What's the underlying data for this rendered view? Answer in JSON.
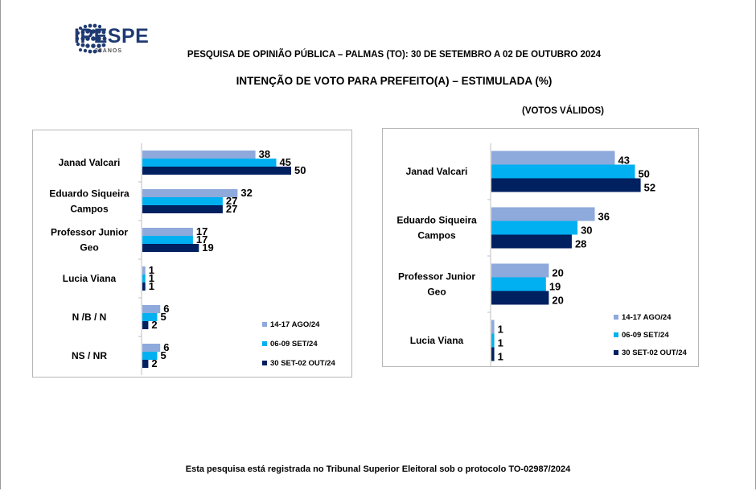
{
  "brand": {
    "name": "IPESPE",
    "tagline": "38ANOS"
  },
  "header": {
    "survey": "PESQUISA DE OPINIÃO PÚBLICA – PALMAS (TO): 30 DE SETEMBRO A 02 DE OUTUBRO 2024"
  },
  "title": "INTENÇÃO DE VOTO PARA PREFEITO(A) – ESTIMULADA (%)",
  "footer": "Esta pesquisa está registrada no Tribunal Superior Eleitoral sob o protocolo TO-02987/2024",
  "colors": {
    "s1": "#8ea9db",
    "s2": "#00b0f0",
    "s3": "#002060"
  },
  "chart_data": [
    {
      "type": "bar",
      "orientation": "horizontal",
      "subtitle": "",
      "categories": [
        [
          "Janad Valcari"
        ],
        [
          "Eduardo Siqueira",
          "Campos"
        ],
        [
          "Professor Junior",
          "Geo"
        ],
        [
          "Lucia Viana"
        ],
        [
          "N /B / N"
        ],
        [
          "NS / NR"
        ]
      ],
      "series": [
        {
          "name": "14-17 AGO/24",
          "color": "#8ea9db",
          "values": [
            38,
            32,
            17,
            1,
            6,
            6
          ]
        },
        {
          "name": "06-09 SET/24",
          "color": "#00b0f0",
          "values": [
            45,
            27,
            17,
            1,
            5,
            5
          ]
        },
        {
          "name": "30 SET-02 OUT/24",
          "color": "#002060",
          "values": [
            50,
            27,
            19,
            1,
            2,
            2
          ]
        }
      ],
      "xlim": [
        0,
        60
      ],
      "legend": "bottom-right",
      "grid": false
    },
    {
      "type": "bar",
      "orientation": "horizontal",
      "subtitle": "(VOTOS VÁLIDOS)",
      "categories": [
        [
          "Janad Valcari"
        ],
        [
          "Eduardo Siqueira",
          "Campos"
        ],
        [
          "Professor Junior",
          "Geo"
        ],
        [
          "Lucia Viana"
        ]
      ],
      "series": [
        {
          "name": "14-17 AGO/24",
          "color": "#8ea9db",
          "values": [
            43,
            36,
            20,
            1
          ]
        },
        {
          "name": "06-09 SET/24",
          "color": "#00b0f0",
          "values": [
            50,
            30,
            19,
            1
          ]
        },
        {
          "name": "30 SET-02 OUT/24",
          "color": "#002060",
          "values": [
            52,
            28,
            20,
            1
          ]
        }
      ],
      "xlim": [
        0,
        65
      ],
      "legend": "bottom-right",
      "grid": false
    }
  ]
}
